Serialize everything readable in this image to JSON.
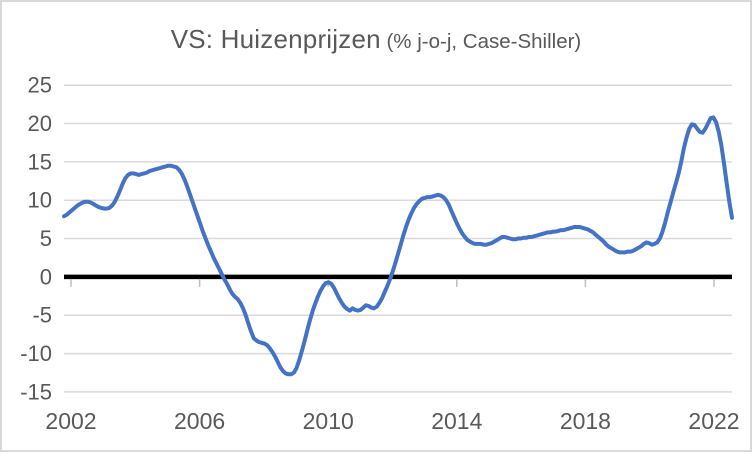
{
  "window": {
    "background_color": "#ffffff",
    "border_color": "#d9d9d9"
  },
  "header": {
    "title_main": "VS: Huizenprijzen",
    "title_sub": " (% j-o-j, Case-Shiller)"
  },
  "chart_data": {
    "type": "line",
    "title": "VS: Huizenprijzen (% j-o-j, Case-Shiller)",
    "x_tick_labels": [
      "2002",
      "2006",
      "2010",
      "2014",
      "2018",
      "2022"
    ],
    "y_tick_labels": [
      "25",
      "20",
      "15",
      "10",
      "5",
      "0",
      "-5",
      "-10",
      "-15"
    ],
    "ylim": [
      -15,
      25
    ],
    "y_step": 5,
    "grid": "horizontal",
    "legend_position": "none",
    "axis_text_color": "#595959",
    "gridline_color": "#d9d9d9",
    "tick_color": "#bfbfbf",
    "zero_line_color": "#000000",
    "series": [
      {
        "name": "Huizenprijzen % j-o-j (Case-Shiller)",
        "color": "#4472c4",
        "frequency": "monthly",
        "x_start": "2002-01",
        "x_end": "2022-11",
        "values": [
          7.9,
          8.1,
          8.4,
          8.7,
          9.0,
          9.3,
          9.5,
          9.7,
          9.8,
          9.8,
          9.7,
          9.5,
          9.3,
          9.1,
          9.0,
          8.9,
          8.9,
          9.0,
          9.3,
          9.8,
          10.5,
          11.3,
          12.2,
          12.9,
          13.3,
          13.5,
          13.5,
          13.4,
          13.3,
          13.4,
          13.5,
          13.6,
          13.8,
          13.9,
          14.0,
          14.1,
          14.2,
          14.3,
          14.4,
          14.5,
          14.5,
          14.4,
          14.3,
          14.0,
          13.5,
          12.8,
          11.9,
          10.9,
          9.9,
          8.9,
          7.9,
          6.9,
          5.9,
          5.0,
          4.1,
          3.3,
          2.5,
          1.8,
          1.1,
          0.4,
          -0.3,
          -0.9,
          -1.6,
          -2.2,
          -2.6,
          -2.9,
          -3.4,
          -4.1,
          -5.0,
          -6.1,
          -7.1,
          -8.0,
          -8.3,
          -8.5,
          -8.6,
          -8.7,
          -8.9,
          -9.3,
          -9.8,
          -10.4,
          -11.1,
          -11.8,
          -12.3,
          -12.6,
          -12.7,
          -12.7,
          -12.5,
          -11.9,
          -10.9,
          -9.7,
          -8.4,
          -7.0,
          -5.7,
          -4.5,
          -3.5,
          -2.6,
          -1.8,
          -1.2,
          -0.8,
          -0.7,
          -0.9,
          -1.4,
          -2.1,
          -2.8,
          -3.4,
          -3.9,
          -4.2,
          -4.4,
          -4.1,
          -4.3,
          -4.4,
          -4.3,
          -4.0,
          -3.7,
          -3.8,
          -4.0,
          -4.1,
          -3.9,
          -3.4,
          -2.8,
          -2.0,
          -1.2,
          -0.3,
          0.7,
          1.8,
          3.0,
          4.2,
          5.4,
          6.5,
          7.5,
          8.3,
          9.0,
          9.5,
          9.9,
          10.2,
          10.3,
          10.4,
          10.4,
          10.5,
          10.6,
          10.7,
          10.6,
          10.4,
          10.0,
          9.4,
          8.6,
          7.8,
          7.0,
          6.3,
          5.7,
          5.2,
          4.8,
          4.6,
          4.4,
          4.3,
          4.3,
          4.3,
          4.2,
          4.2,
          4.3,
          4.4,
          4.6,
          4.8,
          5.0,
          5.2,
          5.2,
          5.1,
          5.0,
          4.9,
          4.9,
          5.0,
          5.0,
          5.1,
          5.1,
          5.2,
          5.2,
          5.3,
          5.4,
          5.5,
          5.6,
          5.7,
          5.8,
          5.8,
          5.9,
          5.9,
          6.0,
          6.1,
          6.1,
          6.2,
          6.3,
          6.4,
          6.5,
          6.5,
          6.5,
          6.4,
          6.3,
          6.2,
          6.0,
          5.8,
          5.5,
          5.2,
          4.9,
          4.6,
          4.2,
          3.9,
          3.7,
          3.5,
          3.3,
          3.2,
          3.2,
          3.2,
          3.3,
          3.3,
          3.4,
          3.6,
          3.8,
          4.0,
          4.3,
          4.5,
          4.4,
          4.2,
          4.3,
          4.5,
          5.0,
          5.9,
          7.1,
          8.5,
          9.7,
          11.0,
          12.2,
          13.5,
          15.0,
          16.8,
          18.2,
          19.3,
          19.9,
          19.8,
          19.3,
          18.9,
          18.8,
          19.3,
          20.0,
          20.7,
          20.8,
          20.2,
          19.0,
          17.2,
          14.8,
          12.2,
          9.8,
          7.7
        ]
      }
    ]
  }
}
